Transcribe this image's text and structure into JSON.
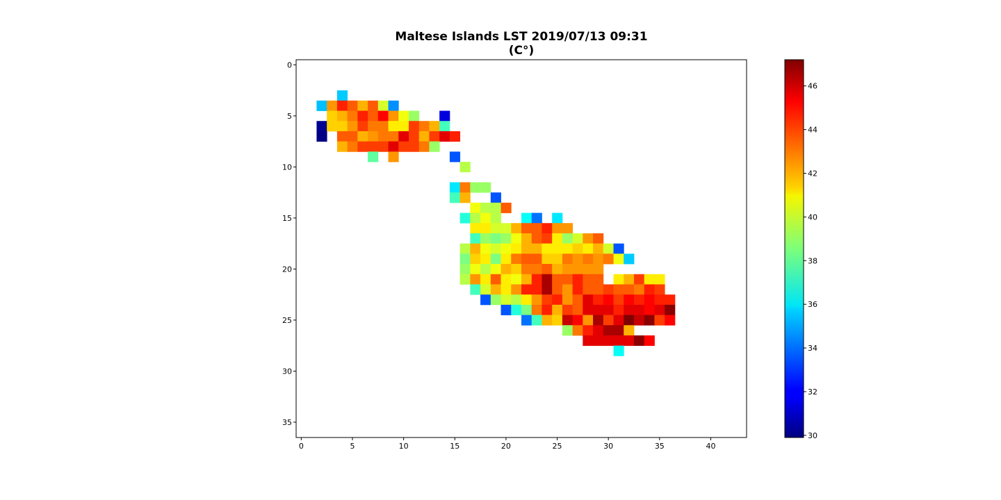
{
  "chart_data": {
    "type": "heatmap",
    "title_line1": "Maltese Islands LST 2019/07/13 09:31",
    "title_line2": "(C°)",
    "x_ticks": [
      0,
      5,
      10,
      15,
      20,
      25,
      30,
      35,
      40
    ],
    "y_ticks": [
      0,
      5,
      10,
      15,
      20,
      25,
      30,
      35
    ],
    "colorbar_ticks": [
      30,
      32,
      34,
      36,
      38,
      40,
      42,
      44,
      46
    ],
    "xlim": [
      -0.5,
      43.5
    ],
    "ylim": [
      36.5,
      -0.5
    ],
    "colorbar_range": [
      29.9,
      47.2
    ],
    "colormap": "jet",
    "rows": [
      {
        "row": 3,
        "start": 4,
        "values": [
          35.5
        ]
      },
      {
        "row": 4,
        "start": 2,
        "values": [
          35.3,
          42.5,
          44.5,
          43.5,
          42,
          43.5,
          40,
          34.5
        ]
      },
      {
        "row": 5,
        "start": 3,
        "values": [
          41.5,
          42,
          43,
          44.5,
          43.5,
          45,
          42.5,
          40.5,
          39,
          null,
          null,
          31.5
        ]
      },
      {
        "row": 6,
        "start": 2,
        "values": [
          30.2,
          41.5,
          41.5,
          42.5,
          44,
          43,
          43,
          41,
          41,
          44,
          43,
          42,
          37.5
        ]
      },
      {
        "row": 7,
        "start": 2,
        "values": [
          30,
          null,
          43.5,
          43.5,
          42,
          42.5,
          43,
          43,
          45.5,
          44,
          42,
          44,
          45.5,
          44.5
        ]
      },
      {
        "row": 8,
        "start": 4,
        "values": [
          42,
          43,
          44,
          44,
          44,
          45.5,
          44,
          44,
          43,
          39
        ]
      },
      {
        "row": 9,
        "start": 7,
        "values": [
          38,
          null,
          42.5,
          null,
          null,
          null,
          null,
          null,
          33.5
        ]
      },
      {
        "row": 10,
        "start": 16,
        "values": [
          39.5
        ]
      },
      {
        "row": 12,
        "start": 15,
        "values": [
          36,
          43,
          39,
          39
        ]
      },
      {
        "row": 13,
        "start": 15,
        "values": [
          37.5,
          42,
          null,
          null,
          33.5
        ]
      },
      {
        "row": 14,
        "start": 17,
        "values": [
          40.5,
          39.5,
          39.5,
          43.5
        ]
      },
      {
        "row": 15,
        "start": 16,
        "values": [
          37,
          39.5,
          40.5,
          39.5,
          null,
          null,
          36.5,
          34,
          null,
          36
        ]
      },
      {
        "row": 16,
        "start": 17,
        "values": [
          41,
          41,
          40,
          40,
          42,
          43.5,
          43.5,
          44.5,
          42.5,
          42.5
        ]
      },
      {
        "row": 17,
        "start": 17,
        "values": [
          37.5,
          39,
          38.5,
          39,
          40.5,
          42,
          43.5,
          44,
          41,
          39,
          40,
          42.5,
          43.5
        ]
      },
      {
        "row": 18,
        "start": 16,
        "values": [
          39.5,
          42,
          40.5,
          40,
          40.5,
          41,
          42,
          42,
          41,
          41,
          41,
          41.5,
          41,
          42,
          40,
          33.5
        ]
      },
      {
        "row": 19,
        "start": 16,
        "values": [
          38.5,
          41.5,
          41,
          38.5,
          41,
          43,
          43.5,
          43.5,
          41.5,
          41.5,
          43,
          42.5,
          43,
          42.5,
          43,
          40.5,
          35.5
        ]
      },
      {
        "row": 20,
        "start": 16,
        "values": [
          39,
          40.5,
          39.5,
          40.5,
          42,
          41.5,
          43,
          43,
          43.5,
          42,
          42.5,
          42.5,
          42.5,
          42.5
        ]
      },
      {
        "row": 21,
        "start": 16,
        "values": [
          39.5,
          42.5,
          41,
          43.5,
          41,
          40.5,
          42,
          44.5,
          46.5,
          43.5,
          43.5,
          44.5,
          43.5,
          43.5,
          null,
          41,
          42,
          44,
          41,
          41
        ]
      },
      {
        "row": 22,
        "start": 17,
        "values": [
          37.5,
          40,
          42,
          41,
          42.5,
          44.5,
          44.5,
          46.5,
          43.5,
          42.5,
          44.5,
          43.5,
          43.5,
          44,
          43.5,
          43.5,
          43,
          44.5,
          44
        ]
      },
      {
        "row": 23,
        "start": 18,
        "values": [
          33.5,
          39,
          40,
          39.5,
          41,
          42.5,
          44,
          44.5,
          42.5,
          43.5,
          45.5,
          44.5,
          45,
          44,
          45,
          44.5,
          45,
          44.5,
          44.5
        ]
      },
      {
        "row": 24,
        "start": 20,
        "values": [
          33.5,
          37,
          38.5,
          43,
          44.5,
          42,
          44,
          43.5,
          45.5,
          45.5,
          45.5,
          44.5,
          45.5,
          45.5,
          45,
          45.5,
          47
        ]
      },
      {
        "row": 25,
        "start": 22,
        "values": [
          34,
          37.5,
          42,
          41.5,
          46,
          45,
          42.5,
          46.5,
          44,
          45.5,
          47.5,
          46,
          47,
          44,
          45
        ]
      },
      {
        "row": 26,
        "start": 26,
        "values": [
          39,
          43,
          44.5,
          45.5,
          46.5,
          46.5,
          42
        ]
      },
      {
        "row": 27,
        "start": 28,
        "values": [
          45.5,
          45.5,
          45.5,
          45.5,
          45.5,
          47,
          45
        ]
      },
      {
        "row": 28,
        "start": 31,
        "values": [
          36.5
        ]
      }
    ]
  }
}
